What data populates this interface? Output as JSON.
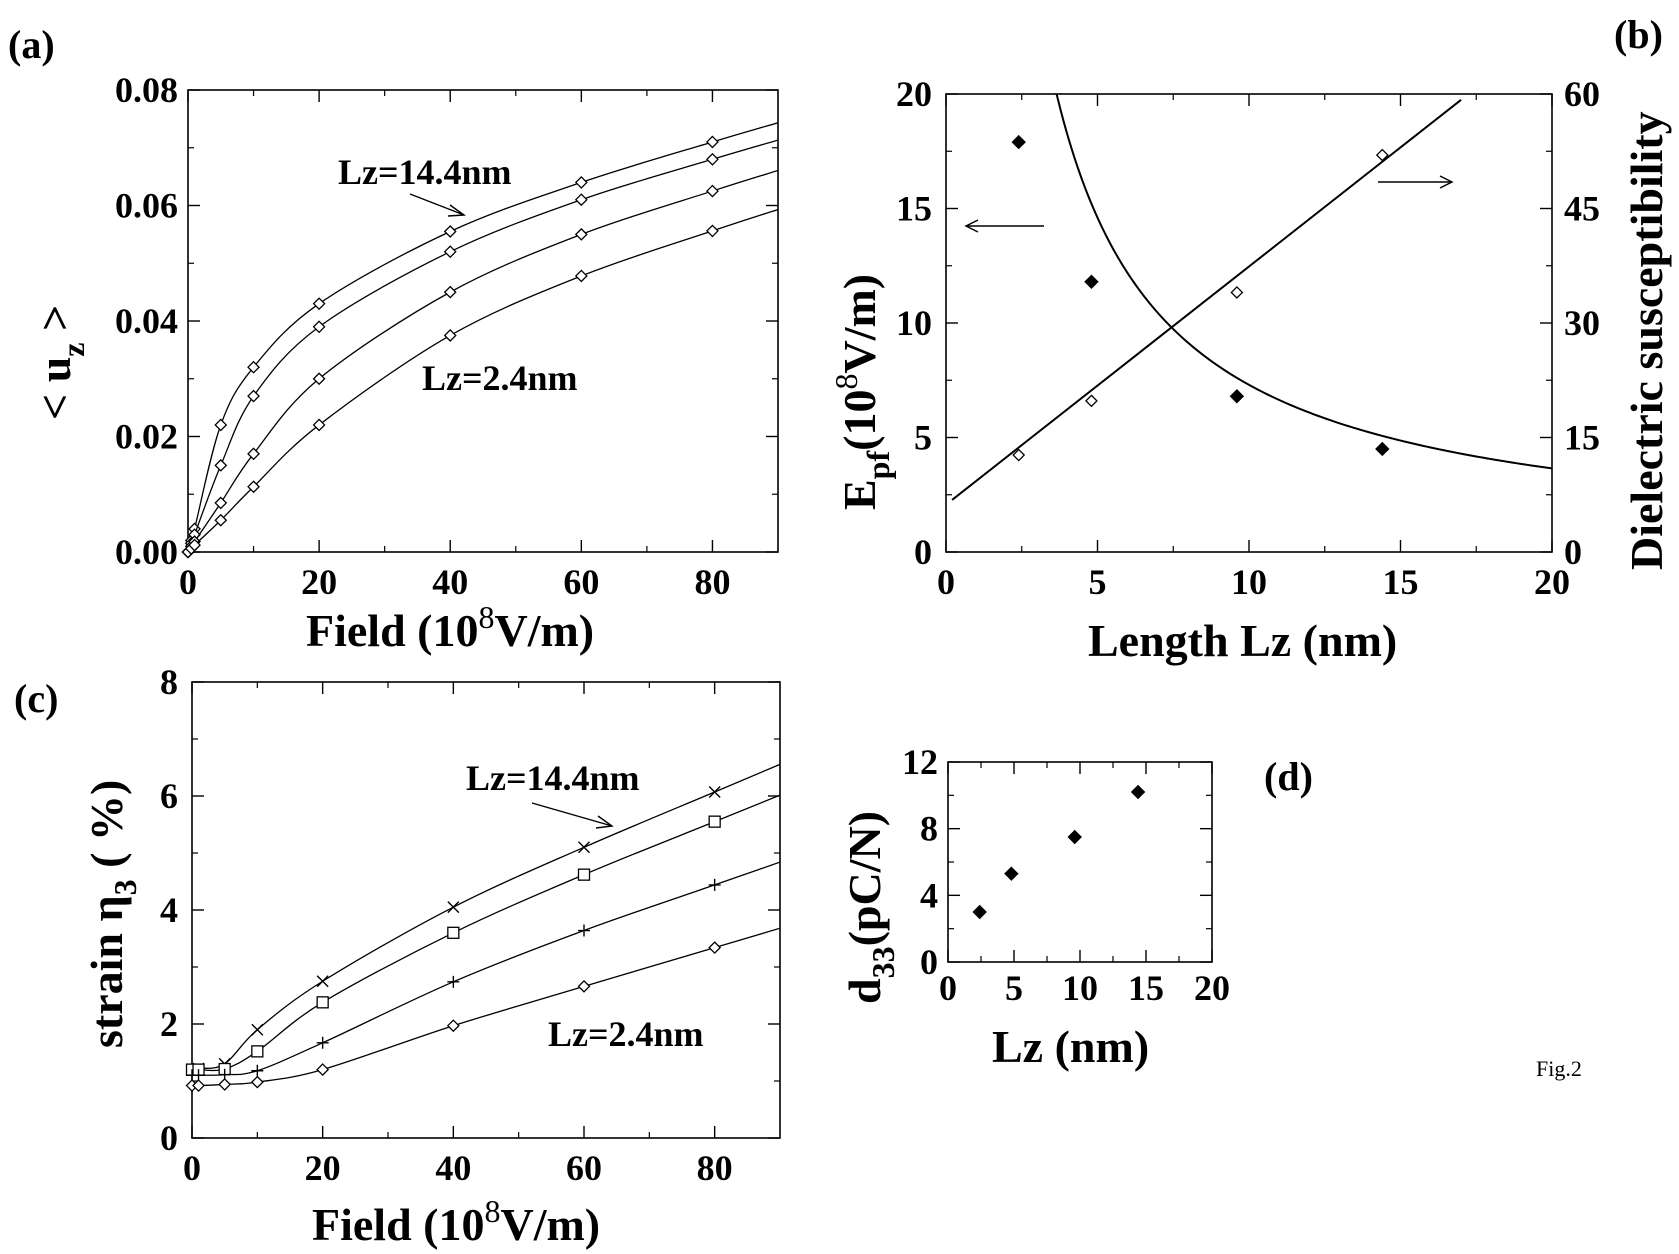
{
  "footer": "Fig.2",
  "chart_data": [
    {
      "id": "a",
      "panel_label": "(a)",
      "type": "line",
      "xlabel_main": "Field  (10",
      "xlabel_sup": "8",
      "xlabel_end": "V/m)",
      "ylabel_main": "< u",
      "ylabel_sub": "z",
      "ylabel_end": " >",
      "xlim": [
        0,
        90
      ],
      "ylim": [
        0,
        0.08
      ],
      "xticks": [
        0,
        20,
        40,
        60,
        80
      ],
      "xtick_labels": [
        "0",
        "20",
        "40",
        "60",
        "80"
      ],
      "yticks": [
        0,
        0.02,
        0.04,
        0.06,
        0.08
      ],
      "ytick_labels": [
        "0.00",
        "0.02",
        "0.04",
        "0.06",
        "0.08"
      ],
      "marker": "diamond",
      "series": [
        {
          "x": [
            0,
            0.5,
            1,
            5,
            10,
            20,
            40,
            60,
            80
          ],
          "values": [
            0,
            0.002,
            0.004,
            0.022,
            0.032,
            0.043,
            0.0555,
            0.064,
            0.071
          ]
        },
        {
          "x": [
            0,
            0.5,
            1,
            5,
            10,
            20,
            40,
            60,
            80
          ],
          "values": [
            0,
            0.0015,
            0.003,
            0.015,
            0.027,
            0.039,
            0.052,
            0.061,
            0.068
          ]
        },
        {
          "x": [
            0,
            0.5,
            1,
            5,
            10,
            20,
            40,
            60,
            80
          ],
          "values": [
            0,
            0.001,
            0.0018,
            0.0085,
            0.017,
            0.03,
            0.045,
            0.055,
            0.0625
          ]
        },
        {
          "x": [
            0,
            0.5,
            1,
            5,
            10,
            20,
            40,
            60,
            80
          ],
          "values": [
            0,
            0.0006,
            0.0012,
            0.0055,
            0.0113,
            0.022,
            0.0375,
            0.0478,
            0.0556
          ]
        }
      ],
      "annotations": [
        {
          "text": "Lz=14.4nm"
        },
        {
          "text": "Lz=2.4nm"
        }
      ]
    },
    {
      "id": "b",
      "panel_label": "(b)",
      "type": "scatter",
      "xlabel": "Length Lz (nm)",
      "ylabel_main": "E",
      "ylabel_sub": "pf",
      "ylabel_mid": "(10",
      "ylabel_sup": "8",
      "ylabel_end": "V/m)",
      "y2label": "Dielectric susceptibility",
      "xlim": [
        0,
        20
      ],
      "ylim": [
        0,
        20
      ],
      "y2lim": [
        0,
        60
      ],
      "xticks": [
        0,
        5,
        10,
        15,
        20
      ],
      "yticks": [
        0,
        5,
        10,
        15,
        20
      ],
      "y2ticks": [
        0,
        15,
        30,
        45,
        60
      ],
      "series": [
        {
          "axis": "left",
          "marker": "filled-diamond",
          "x": [
            2.4,
            4.8,
            9.6,
            14.4
          ],
          "values": [
            17.9,
            11.8,
            6.8,
            4.5
          ]
        },
        {
          "axis": "right",
          "marker": "open-diamond",
          "x": [
            2.4,
            4.8,
            9.6,
            14.4
          ],
          "values": [
            12.7,
            19.8,
            34,
            52
          ]
        }
      ],
      "fits": [
        {
          "axis": "left",
          "kind": "inverse",
          "a": 73,
          "b": 0,
          "xmin": 2.28,
          "xmax": 20
        },
        {
          "axis": "right",
          "kind": "linear",
          "slope": 3.12,
          "intercept": 6.2,
          "xmin": 0.2,
          "xmax": 17
        }
      ]
    },
    {
      "id": "c",
      "panel_label": "(c)",
      "type": "line",
      "xlabel_main": "Field  (10",
      "xlabel_sup": "8",
      "xlabel_end": "V/m)",
      "ylabel_main": "strain η",
      "ylabel_sub": "3",
      "ylabel_end": " ( %)",
      "xlim": [
        0,
        90
      ],
      "ylim": [
        0,
        8
      ],
      "xticks": [
        0,
        20,
        40,
        60,
        80
      ],
      "xtick_labels": [
        "0",
        "20",
        "40",
        "60",
        "80"
      ],
      "yticks": [
        0,
        2,
        4,
        6,
        8
      ],
      "ytick_labels": [
        "0",
        "2",
        "4",
        "6",
        "8"
      ],
      "series": [
        {
          "marker": "x",
          "x": [
            0,
            1,
            5,
            10,
            20,
            40,
            60,
            80
          ],
          "values": [
            1.2,
            1.22,
            1.3,
            1.9,
            2.75,
            4.05,
            5.1,
            6.07
          ]
        },
        {
          "marker": "square",
          "x": [
            0,
            1,
            5,
            10,
            20,
            40,
            60,
            80
          ],
          "values": [
            1.2,
            1.2,
            1.21,
            1.52,
            2.38,
            3.6,
            4.62,
            5.55
          ]
        },
        {
          "marker": "plus",
          "x": [
            0,
            1,
            5,
            10,
            20,
            40,
            60,
            80
          ],
          "values": [
            1.1,
            1.1,
            1.11,
            1.18,
            1.67,
            2.74,
            3.64,
            4.44
          ]
        },
        {
          "marker": "diamond",
          "x": [
            0,
            1,
            5,
            10,
            20,
            40,
            60,
            80
          ],
          "values": [
            0.92,
            0.92,
            0.94,
            0.98,
            1.2,
            1.97,
            2.66,
            3.34
          ]
        }
      ],
      "annotations": [
        {
          "text": "Lz=14.4nm"
        },
        {
          "text": "Lz=2.4nm"
        }
      ]
    },
    {
      "id": "d",
      "panel_label": "(d)",
      "type": "scatter",
      "xlabel": "Lz (nm)",
      "ylabel_main": "d",
      "ylabel_sub": "33",
      "ylabel_end": "(pC/N)",
      "xlim": [
        0,
        20
      ],
      "ylim": [
        0,
        12
      ],
      "xticks": [
        0,
        5,
        10,
        15,
        20
      ],
      "yticks": [
        0,
        4,
        8,
        12
      ],
      "series": [
        {
          "marker": "filled-diamond",
          "x": [
            2.4,
            4.8,
            9.6,
            14.4
          ],
          "values": [
            3.0,
            5.3,
            7.5,
            10.2
          ]
        }
      ]
    }
  ]
}
